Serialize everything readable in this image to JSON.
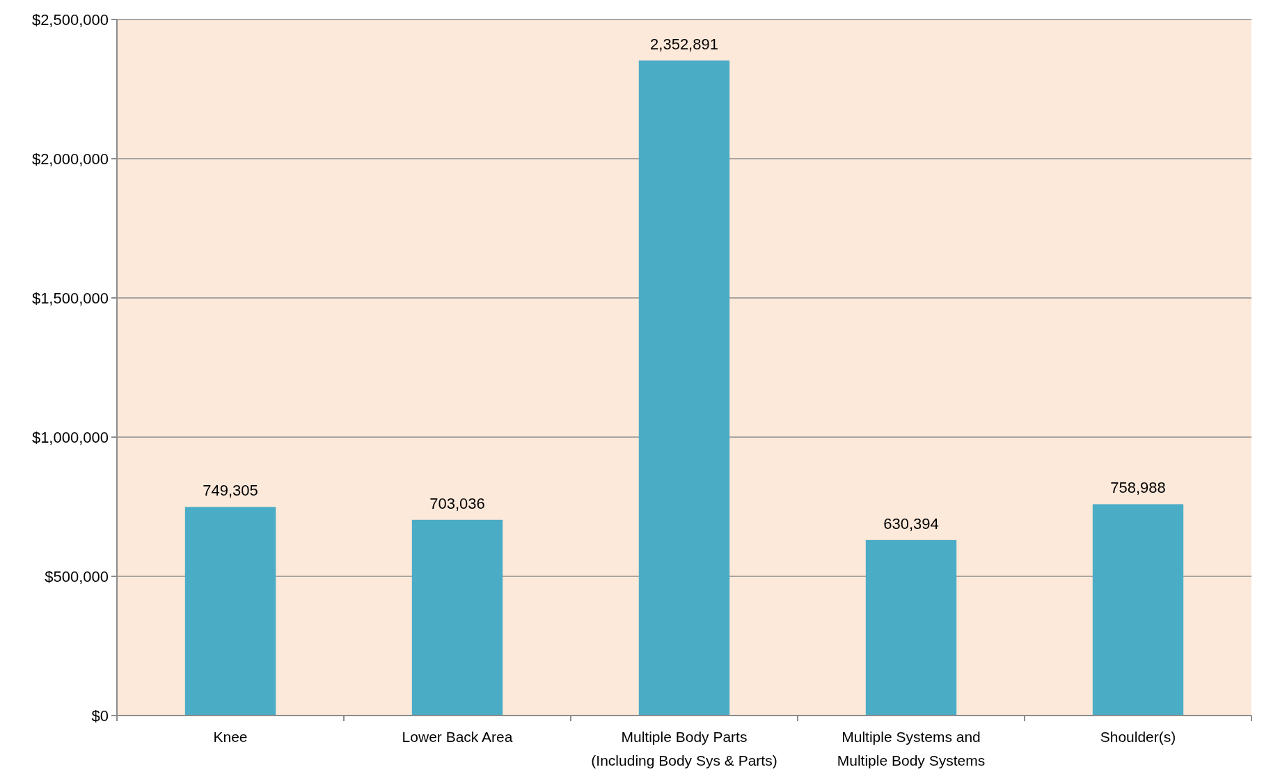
{
  "chart_data": {
    "type": "bar",
    "categories": [
      "Knee",
      "Lower Back Area",
      "Multiple Body Parts (Including Body Sys & Parts)",
      "Multiple Systems and Multiple Body Systems",
      "Shoulder(s)"
    ],
    "values": [
      749305,
      703036,
      2352891,
      630394,
      758988
    ],
    "value_labels": [
      "749,305",
      "703,036",
      "2,352,891",
      "630,394",
      "758,988"
    ],
    "color": "#4bacc6",
    "ylim": [
      0,
      2500000
    ],
    "yticks": [
      {
        "value": 0,
        "label": "$0"
      },
      {
        "value": 500000,
        "label": "$500,000"
      },
      {
        "value": 1000000,
        "label": "$1,000,000"
      },
      {
        "value": 1500000,
        "label": "$1,500,000"
      },
      {
        "value": 2000000,
        "label": "$2,000,000"
      },
      {
        "value": 2500000,
        "label": "$2,500,000"
      }
    ],
    "grid": "y"
  }
}
